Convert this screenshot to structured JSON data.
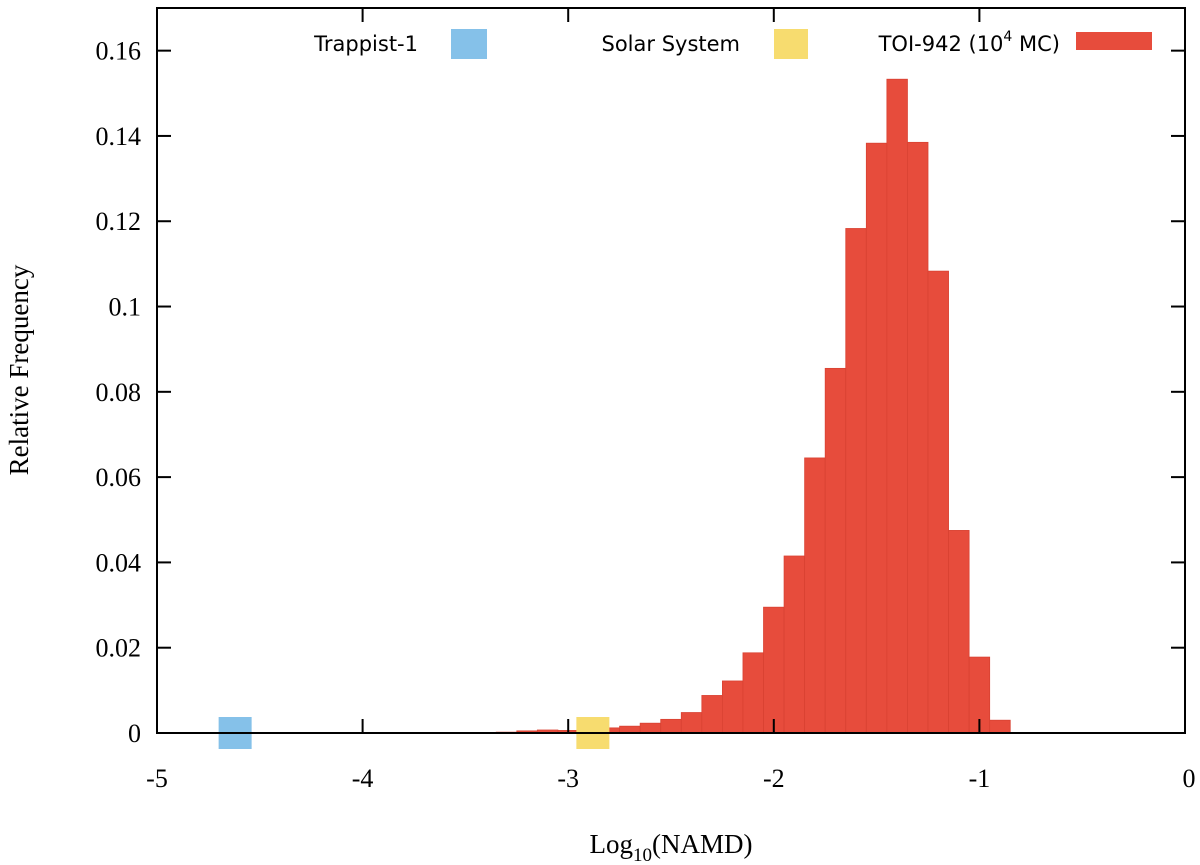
{
  "chart_data": {
    "type": "bar",
    "xlabel": "Log",
    "xlabel_subscript": "10",
    "xlabel_suffix": "(NAMD)",
    "ylabel": "Relative Frequency",
    "xlim": [
      -5,
      0
    ],
    "ylim": [
      0,
      0.17
    ],
    "xticks": [
      -5,
      -4,
      -3,
      -2,
      -1,
      0
    ],
    "xtick_labels": [
      "-5",
      "-4",
      "-3",
      "-2",
      "-1",
      "0"
    ],
    "yticks": [
      0,
      0.02,
      0.04,
      0.06,
      0.08,
      0.1,
      0.12,
      0.14,
      0.16
    ],
    "ytick_labels": [
      "0",
      "0.02",
      "0.04",
      "0.06",
      "0.08",
      "0.1",
      "0.12",
      "0.14",
      "0.16"
    ],
    "grid": false,
    "legend_position": "top",
    "legend": [
      {
        "label": "Trappist-1",
        "color": "#85c1e9",
        "marker": "square"
      },
      {
        "label": "Solar System",
        "color": "#f7dc6f",
        "marker": "square"
      },
      {
        "label": "TOI-942 (10",
        "label_sup": "4",
        "label_suffix": " MC)",
        "color": "#e74c3c",
        "marker": "bar"
      }
    ],
    "series": [
      {
        "name": "TOI-942 (10^4 MC)",
        "color": "#e74c3c",
        "bin_width": 0.1,
        "bin_left_edges": [
          -4.05,
          -3.75,
          -3.35,
          -3.25,
          -3.15,
          -3.05,
          -2.95,
          -2.85,
          -2.75,
          -2.65,
          -2.55,
          -2.45,
          -2.35,
          -2.25,
          -2.15,
          -2.05,
          -1.95,
          -1.85,
          -1.75,
          -1.65,
          -1.55,
          -1.45,
          -1.35,
          -1.25,
          -1.15,
          -1.05,
          -0.95
        ],
        "values": [
          0.0001,
          0.0001,
          0.0002,
          0.0005,
          0.0007,
          0.0006,
          0.001,
          0.0012,
          0.0016,
          0.0023,
          0.0032,
          0.0048,
          0.0088,
          0.0122,
          0.0188,
          0.0295,
          0.0415,
          0.0645,
          0.0855,
          0.1183,
          0.1383,
          0.1533,
          0.1385,
          0.1083,
          0.0475,
          0.0178,
          0.003
        ]
      }
    ],
    "markers": [
      {
        "name": "Trappist-1",
        "x": -4.62,
        "y": 0,
        "color": "#85c1e9"
      },
      {
        "name": "Solar System",
        "x": -2.88,
        "y": 0,
        "color": "#f7dc6f"
      }
    ]
  }
}
